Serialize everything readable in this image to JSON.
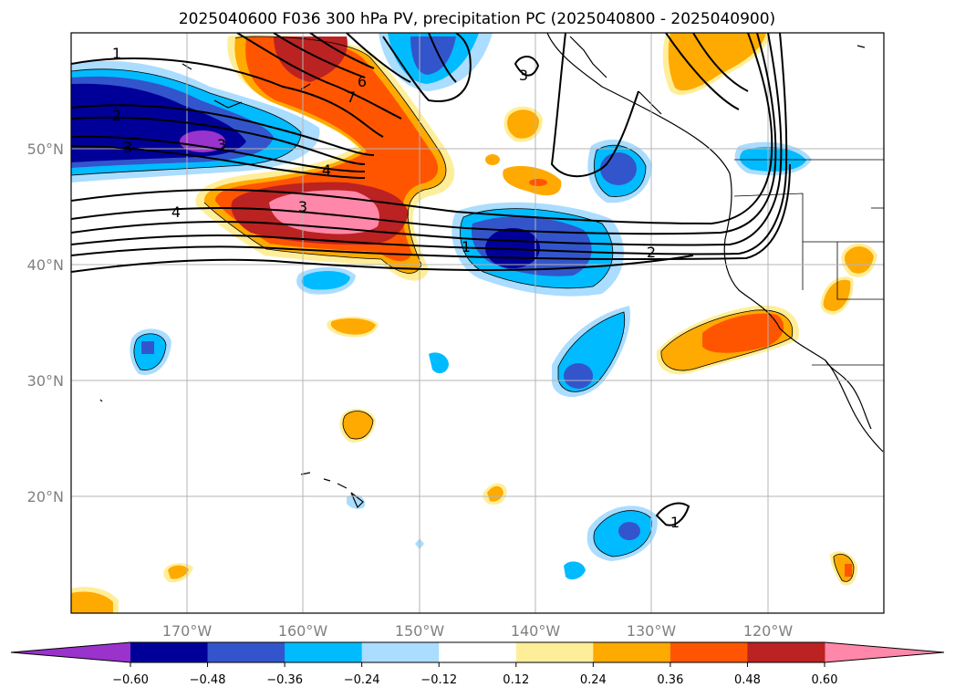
{
  "title": "2025040600 F036 300 hPa PV, precipitation PC (2025040800 - 2025040900)",
  "lat_labels": [
    "50°N",
    "40°N",
    "30°N",
    "20°N"
  ],
  "lon_labels": [
    "170°W",
    "160°W",
    "150°W",
    "140°W",
    "130°W",
    "120°W"
  ],
  "contour_labels": [
    "1",
    "2",
    "3",
    "4",
    "3",
    "6",
    "7",
    "4",
    "3",
    "1",
    "2",
    "3",
    "1"
  ],
  "colorbar": {
    "ticks": [
      "−0.60",
      "−0.48",
      "−0.36",
      "−0.24",
      "−0.12",
      "0.12",
      "0.24",
      "0.36",
      "0.48",
      "0.60"
    ],
    "colors": [
      "#9933cc",
      "#000099",
      "#3355cc",
      "#00bbff",
      "#aaddff",
      "#ffffff",
      "#ffee99",
      "#ffaa00",
      "#ff5500",
      "#bb2222",
      "#ff88aa"
    ]
  }
}
